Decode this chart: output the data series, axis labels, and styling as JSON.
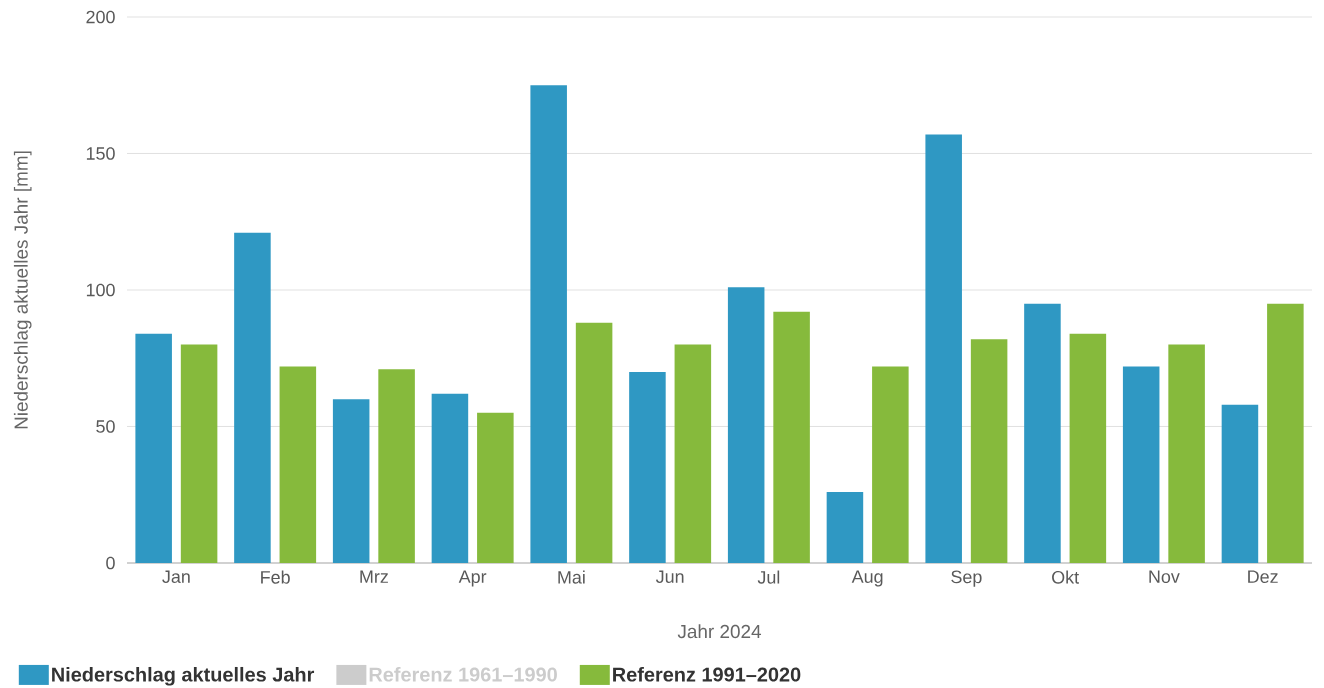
{
  "chart_data": {
    "type": "bar",
    "xlabel": "Jahr 2024",
    "ylabel": "Niederschlag aktuelles Jahr [mm]",
    "categories": [
      "Jan",
      "Feb",
      "Mrz",
      "Apr",
      "Mai",
      "Jun",
      "Jul",
      "Aug",
      "Sep",
      "Okt",
      "Nov",
      "Dez"
    ],
    "series": [
      {
        "name": "Niederschlag aktuelles Jahr",
        "color": "#2f98c3",
        "values": [
          84,
          121,
          60,
          62,
          175,
          70,
          101,
          26,
          157,
          95,
          72,
          58
        ]
      },
      {
        "name": "Referenz 1961–1990",
        "color": "#cccccc",
        "values": [
          null,
          null,
          null,
          null,
          null,
          null,
          null,
          null,
          null,
          null,
          null,
          null
        ]
      },
      {
        "name": "Referenz 1991–2020",
        "color": "#86ba3c",
        "values": [
          80,
          72,
          71,
          55,
          88,
          80,
          92,
          72,
          82,
          84,
          80,
          95
        ]
      }
    ],
    "ylim": [
      0,
      200
    ],
    "yticks": [
      0,
      50,
      100,
      150,
      200
    ],
    "grid": "y",
    "legend": "bottom left"
  }
}
